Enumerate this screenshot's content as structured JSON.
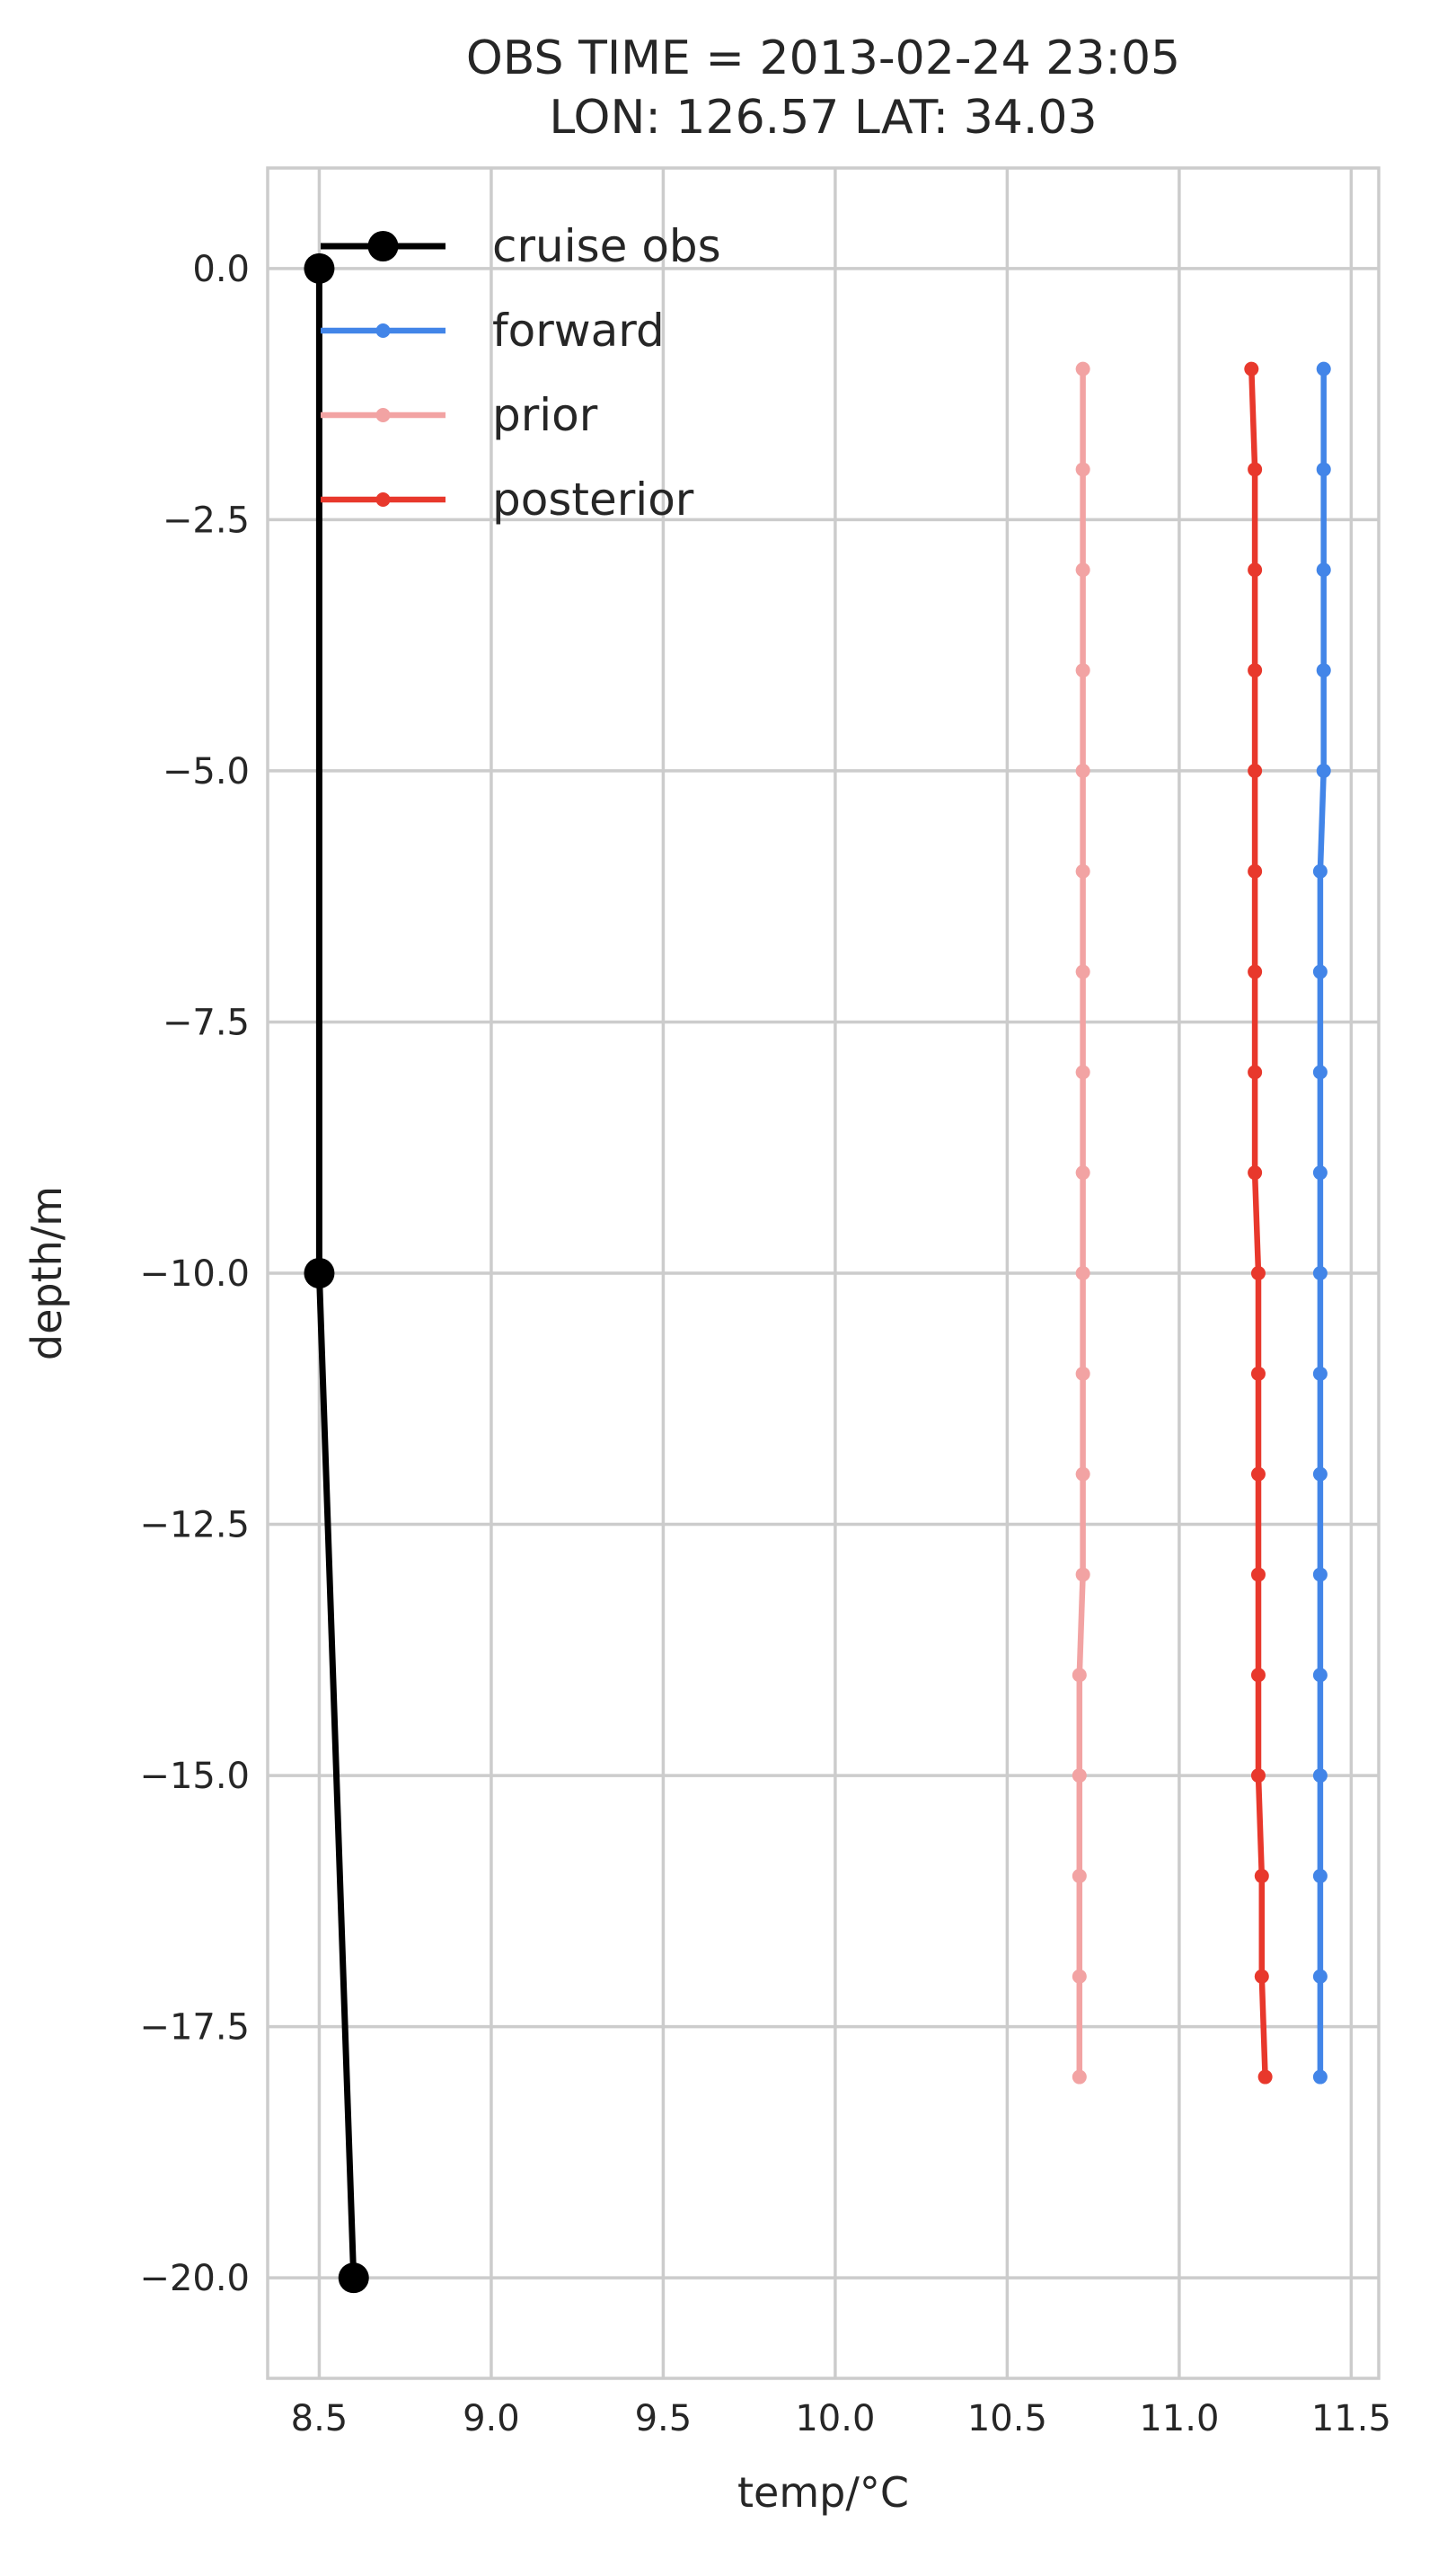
{
  "chart_data": {
    "type": "line",
    "title": [
      "OBS TIME = 2013-02-24 23:05",
      "LON: 126.57 LAT: 34.03"
    ],
    "xlabel": "temp/°C",
    "ylabel": "depth/m",
    "xlim": [
      8.35,
      11.58
    ],
    "ylim": [
      -21.0,
      1.0
    ],
    "xticks": [
      8.5,
      9.0,
      9.5,
      10.0,
      10.5,
      11.0,
      11.5
    ],
    "xtick_labels": [
      "8.5",
      "9.0",
      "9.5",
      "10.0",
      "10.5",
      "11.0",
      "11.5"
    ],
    "yticks": [
      0.0,
      -2.5,
      -5.0,
      -7.5,
      -10.0,
      -12.5,
      -15.0,
      -17.5,
      -20.0
    ],
    "ytick_labels": [
      "0.0",
      "−2.5",
      "−5.0",
      "−7.5",
      "−10.0",
      "−12.5",
      "−15.0",
      "−17.5",
      "−20.0"
    ],
    "grid": true,
    "legend_position": "upper-left",
    "series": [
      {
        "name": "cruise obs",
        "color": "#000000",
        "marker": "large-circle",
        "points": [
          [
            8.5,
            0.0
          ],
          [
            8.5,
            -10.0
          ],
          [
            8.6,
            -20.0
          ]
        ]
      },
      {
        "name": "forward",
        "color": "#4285e8",
        "marker": "small-circle",
        "points": [
          [
            11.42,
            -1
          ],
          [
            11.42,
            -2
          ],
          [
            11.42,
            -3
          ],
          [
            11.42,
            -4
          ],
          [
            11.42,
            -5
          ],
          [
            11.41,
            -6
          ],
          [
            11.41,
            -7
          ],
          [
            11.41,
            -8
          ],
          [
            11.41,
            -9
          ],
          [
            11.41,
            -10
          ],
          [
            11.41,
            -11
          ],
          [
            11.41,
            -12
          ],
          [
            11.41,
            -13
          ],
          [
            11.41,
            -14
          ],
          [
            11.41,
            -15
          ],
          [
            11.41,
            -16
          ],
          [
            11.41,
            -17
          ],
          [
            11.41,
            -18
          ]
        ]
      },
      {
        "name": "prior",
        "color": "#f2a3a3",
        "marker": "small-circle",
        "points": [
          [
            10.72,
            -1
          ],
          [
            10.72,
            -2
          ],
          [
            10.72,
            -3
          ],
          [
            10.72,
            -4
          ],
          [
            10.72,
            -5
          ],
          [
            10.72,
            -6
          ],
          [
            10.72,
            -7
          ],
          [
            10.72,
            -8
          ],
          [
            10.72,
            -9
          ],
          [
            10.72,
            -10
          ],
          [
            10.72,
            -11
          ],
          [
            10.72,
            -12
          ],
          [
            10.72,
            -13
          ],
          [
            10.71,
            -14
          ],
          [
            10.71,
            -15
          ],
          [
            10.71,
            -16
          ],
          [
            10.71,
            -17
          ],
          [
            10.71,
            -18
          ]
        ]
      },
      {
        "name": "posterior",
        "color": "#e8382c",
        "marker": "small-circle",
        "points": [
          [
            11.21,
            -1
          ],
          [
            11.22,
            -2
          ],
          [
            11.22,
            -3
          ],
          [
            11.22,
            -4
          ],
          [
            11.22,
            -5
          ],
          [
            11.22,
            -6
          ],
          [
            11.22,
            -7
          ],
          [
            11.22,
            -8
          ],
          [
            11.22,
            -9
          ],
          [
            11.23,
            -10
          ],
          [
            11.23,
            -11
          ],
          [
            11.23,
            -12
          ],
          [
            11.23,
            -13
          ],
          [
            11.23,
            -14
          ],
          [
            11.23,
            -15
          ],
          [
            11.24,
            -16
          ],
          [
            11.24,
            -17
          ],
          [
            11.25,
            -18
          ]
        ]
      }
    ]
  }
}
